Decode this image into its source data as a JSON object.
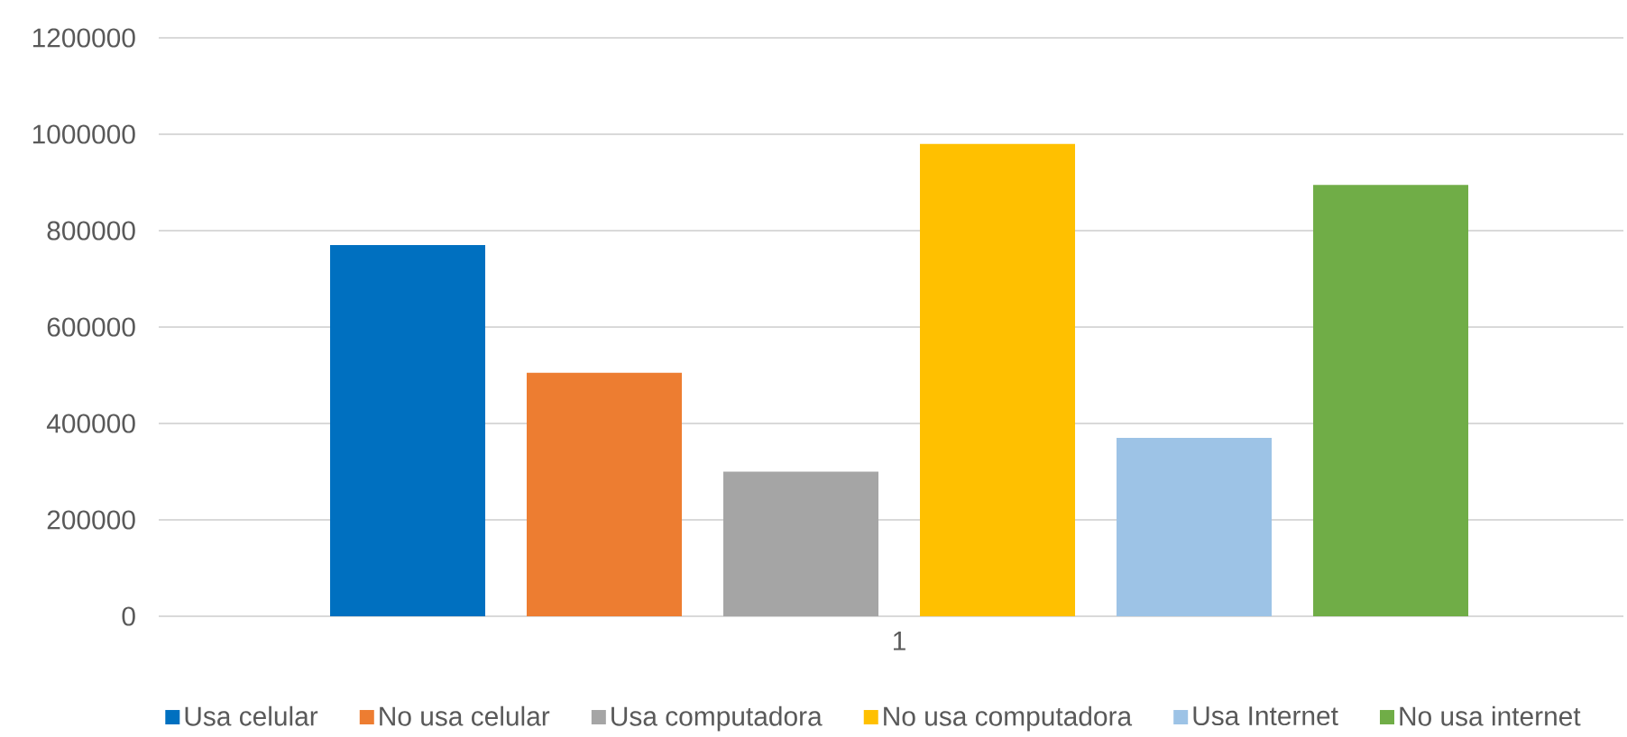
{
  "chart_data": {
    "type": "bar",
    "categories": [
      "1"
    ],
    "series": [
      {
        "name": "Usa celular",
        "color": "#0070c0",
        "values": [
          770000
        ]
      },
      {
        "name": "No usa celular",
        "color": "#ed7d31",
        "values": [
          505000
        ]
      },
      {
        "name": "Usa computadora",
        "color": "#a5a5a5",
        "values": [
          300000
        ]
      },
      {
        "name": "No usa computadora",
        "color": "#ffc000",
        "values": [
          980000
        ]
      },
      {
        "name": "Usa Internet",
        "color": "#9dc3e6",
        "values": [
          370000
        ]
      },
      {
        "name": "No usa internet",
        "color": "#70ad47",
        "values": [
          895000
        ]
      }
    ],
    "ylim": [
      0,
      1200000
    ],
    "yticks": [
      0,
      200000,
      400000,
      600000,
      800000,
      1000000,
      1200000
    ],
    "grid": "y",
    "legend": "bottom"
  }
}
